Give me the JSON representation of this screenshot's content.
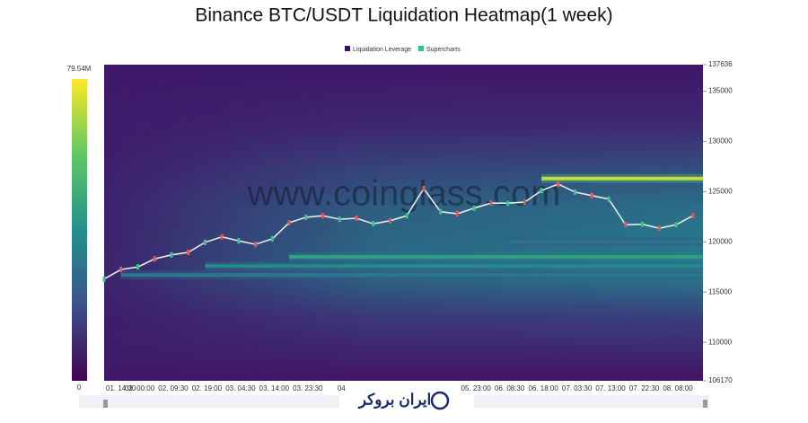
{
  "chart_data": {
    "type": "heatmap",
    "title": "Binance BTC/USDT Liquidation Heatmap(1 week)",
    "legend": [
      {
        "name": "Liquidation Leverage",
        "color": "#3b0f6f"
      },
      {
        "name": "Supercharts",
        "color": "#20c997"
      }
    ],
    "colorbar": {
      "lim": [
        0,
        79540000
      ],
      "ticks": [
        {
          "value": 79540000,
          "label": "79.54M"
        },
        0
      ]
    },
    "ylim": [
      106170,
      137636
    ],
    "yticks": [
      106170,
      110000,
      115000,
      120000,
      125000,
      130000,
      135000,
      137636
    ],
    "xlim": [
      0,
      17.8
    ],
    "categories": [
      "01. 14:30",
      "02. 00:00",
      "02. 09:30",
      "02. 19:00",
      "03. 04:30",
      "03. 14:00",
      "03. 23:30",
      "04",
      null,
      null,
      null,
      "05. 23:00",
      "06. 08:30",
      "06. 18:00",
      "07. 03:30",
      "07. 13:00",
      "07. 22:30",
      "08. 08:00"
    ],
    "price_x": [
      0,
      0.5,
      1,
      1.5,
      2,
      2.5,
      3,
      3.5,
      4,
      4.5,
      5,
      5.5,
      6,
      6.5,
      7,
      7.5,
      8,
      8.5,
      9,
      9.5,
      10,
      10.5,
      11,
      11.5,
      12,
      12.5,
      13,
      13.5,
      14,
      14.5,
      15,
      15.5,
      16,
      16.5,
      17,
      17.5
    ],
    "price": [
      116300,
      117250,
      117500,
      118300,
      118700,
      118950,
      119950,
      120500,
      120100,
      119750,
      120300,
      121900,
      122450,
      122600,
      122250,
      122350,
      121800,
      122100,
      122600,
      125300,
      123000,
      122800,
      123350,
      123850,
      123850,
      123950,
      125100,
      125750,
      124950,
      124600,
      124250,
      121700,
      121750,
      121350,
      121700,
      122600
    ],
    "levels": [
      {
        "price": 126300,
        "from": 13,
        "intensity": 72000000
      },
      {
        "price": 118500,
        "from": 5.5,
        "intensity": 45000000
      },
      {
        "price": 117600,
        "from": 3,
        "intensity": 38000000
      },
      {
        "price": 116700,
        "from": 0.5,
        "intensity": 32000000
      },
      {
        "price": 120000,
        "from": 12,
        "intensity": 30000000
      }
    ],
    "watermark": "www.coinglass.com",
    "logo": "ایران بروکر"
  }
}
